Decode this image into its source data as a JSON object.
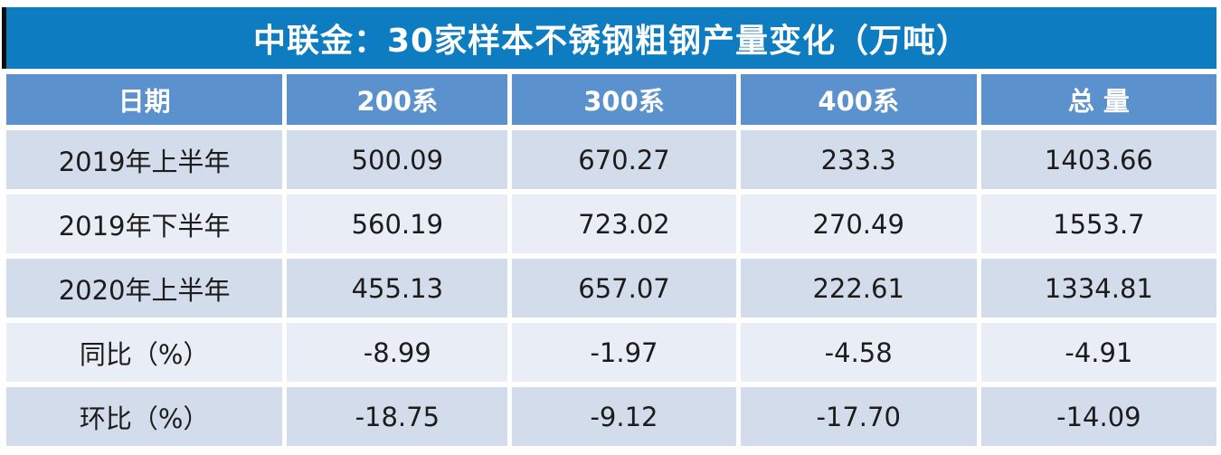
{
  "table": {
    "title": "中联金：30家样本不锈钢粗钢产量变化（万吨）",
    "headers": [
      "日期",
      "200系",
      "300系",
      "400系",
      "总 量"
    ],
    "rows": [
      {
        "cells": [
          "2019年上半年",
          "500.09",
          "670.27",
          "233.3",
          "1403.66"
        ]
      },
      {
        "cells": [
          "2019年下半年",
          "560.19",
          "723.02",
          "270.49",
          "1553.7"
        ]
      },
      {
        "cells": [
          "2020年上半年",
          "455.13",
          "657.07",
          "222.61",
          "1334.81"
        ]
      },
      {
        "cells": [
          "同比（%）",
          "-8.99",
          "-1.97",
          "-4.58",
          "-4.91"
        ]
      },
      {
        "cells": [
          "环比（%）",
          "-18.75",
          "-9.12",
          "-17.70",
          "-14.09"
        ]
      }
    ]
  },
  "colors": {
    "title_bar": "#0d7cc1",
    "header_row": "#5b92ce",
    "row_odd": "#d2dcea",
    "row_even": "#e9edf5",
    "title_text": "#ffffff",
    "body_text": "#1c1c1c",
    "accent_bar": "#0e0e0e"
  },
  "chart_data": {
    "type": "table",
    "title": "中联金：30家样本不锈钢粗钢产量变化（万吨）",
    "columns": [
      "日期",
      "200系",
      "300系",
      "400系",
      "总量"
    ],
    "rows": [
      [
        "2019年上半年",
        500.09,
        670.27,
        233.3,
        1403.66
      ],
      [
        "2019年下半年",
        560.19,
        723.02,
        270.49,
        1553.7
      ],
      [
        "2020年上半年",
        455.13,
        657.07,
        222.61,
        1334.81
      ],
      [
        "同比（%）",
        -8.99,
        -1.97,
        -4.58,
        -4.91
      ],
      [
        "环比（%）",
        -18.75,
        -9.12,
        -17.7,
        -14.09
      ]
    ],
    "units": "万吨",
    "layout": {
      "header_position": "top",
      "grid": "white-gaps",
      "alternating_rows": true
    }
  }
}
